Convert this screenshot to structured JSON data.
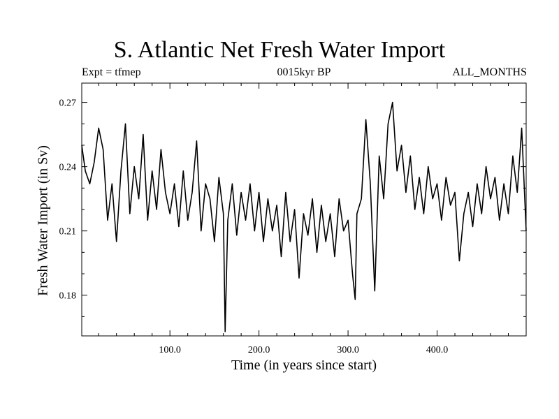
{
  "header": {
    "title": "S. Atlantic Net Fresh Water Import",
    "subtitle_left": "Expt = tfmep",
    "subtitle_center": "0015kyr BP",
    "subtitle_right": "ALL_MONTHS"
  },
  "chart_data": {
    "type": "line",
    "title": "S. Atlantic Net Fresh Water Import",
    "xlabel": "Time (in years since start)",
    "ylabel": "Fresh Water Import (in Sv)",
    "xlim": [
      1,
      500
    ],
    "ylim": [
      0.161,
      0.279
    ],
    "x_ticks": [
      100,
      200,
      300,
      400
    ],
    "x_tick_labels": [
      "100.0",
      "200.0",
      "300.0",
      "400.0"
    ],
    "y_ticks": [
      0.18,
      0.21,
      0.24,
      0.27
    ],
    "y_tick_labels": [
      "0.18",
      "0.21",
      "0.24",
      "0.27"
    ],
    "grid": false,
    "line_color": "#000000",
    "series": [
      {
        "x": [
          1,
          5,
          10,
          15,
          20,
          25,
          30,
          35,
          40,
          45,
          50,
          55,
          60,
          65,
          70,
          75,
          80,
          85,
          90,
          95,
          100,
          105,
          110,
          115,
          120,
          125,
          130,
          135,
          140,
          145,
          150,
          155,
          160,
          162,
          165,
          170,
          175,
          180,
          185,
          190,
          195,
          200,
          205,
          210,
          215,
          220,
          225,
          230,
          235,
          240,
          245,
          250,
          255,
          260,
          265,
          270,
          275,
          280,
          285,
          290,
          295,
          300,
          305,
          308,
          310,
          315,
          320,
          325,
          330,
          335,
          340,
          345,
          350,
          355,
          360,
          365,
          370,
          375,
          380,
          385,
          390,
          395,
          400,
          405,
          410,
          415,
          420,
          425,
          430,
          435,
          440,
          445,
          450,
          455,
          460,
          465,
          470,
          475,
          480,
          485,
          490,
          495,
          500
        ],
        "values": [
          0.25,
          0.238,
          0.232,
          0.242,
          0.258,
          0.248,
          0.215,
          0.232,
          0.205,
          0.238,
          0.26,
          0.218,
          0.24,
          0.225,
          0.255,
          0.215,
          0.238,
          0.22,
          0.248,
          0.228,
          0.218,
          0.232,
          0.212,
          0.238,
          0.215,
          0.228,
          0.252,
          0.21,
          0.232,
          0.225,
          0.205,
          0.235,
          0.218,
          0.163,
          0.215,
          0.232,
          0.208,
          0.228,
          0.215,
          0.232,
          0.21,
          0.228,
          0.205,
          0.225,
          0.21,
          0.222,
          0.198,
          0.228,
          0.205,
          0.22,
          0.188,
          0.218,
          0.208,
          0.225,
          0.2,
          0.222,
          0.205,
          0.218,
          0.198,
          0.225,
          0.21,
          0.215,
          0.19,
          0.178,
          0.218,
          0.225,
          0.262,
          0.232,
          0.182,
          0.245,
          0.225,
          0.26,
          0.27,
          0.238,
          0.25,
          0.228,
          0.245,
          0.22,
          0.235,
          0.218,
          0.24,
          0.225,
          0.232,
          0.215,
          0.235,
          0.222,
          0.228,
          0.196,
          0.218,
          0.228,
          0.212,
          0.232,
          0.218,
          0.24,
          0.225,
          0.235,
          0.215,
          0.232,
          0.218,
          0.245,
          0.228,
          0.258,
          0.21
        ]
      }
    ]
  }
}
